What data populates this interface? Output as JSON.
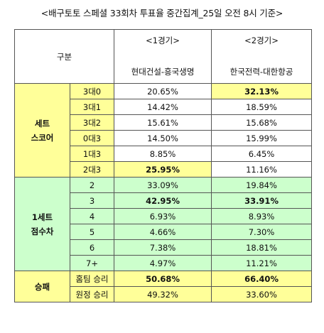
{
  "title": "<배구토토 스페셜 33회차 투표율 중간집계_25일 오전 8시 기준>",
  "header": {
    "label": "구분",
    "games": [
      {
        "game": "<1경기>",
        "teams": "현대건설-흥국생명"
      },
      {
        "game": "<2경기>",
        "teams": "한국전력-대한항공"
      }
    ]
  },
  "sections": [
    {
      "category": [
        "세트",
        "스코어"
      ],
      "rows": [
        {
          "label": "3대0",
          "v1": "20.65%",
          "v2": "32.13%"
        },
        {
          "label": "3대1",
          "v1": "14.42%",
          "v2": "18.59%"
        },
        {
          "label": "3대2",
          "v1": "15.61%",
          "v2": "15.68%"
        },
        {
          "label": "0대3",
          "v1": "14.50%",
          "v2": "15.99%"
        },
        {
          "label": "1대3",
          "v1": "8.85%",
          "v2": "6.45%"
        },
        {
          "label": "2대3",
          "v1": "25.95%",
          "v2": "11.16%"
        }
      ]
    },
    {
      "category": [
        "1세트",
        "점수차"
      ],
      "rows": [
        {
          "label": "2",
          "v1": "33.09%",
          "v2": "19.84%"
        },
        {
          "label": "3",
          "v1": "42.95%",
          "v2": "33.91%"
        },
        {
          "label": "4",
          "v1": "6.93%",
          "v2": "8.93%"
        },
        {
          "label": "5",
          "v1": "4.66%",
          "v2": "7.30%"
        },
        {
          "label": "6",
          "v1": "7.38%",
          "v2": "18.81%"
        },
        {
          "label": "7+",
          "v1": "4.97%",
          "v2": "11.21%"
        }
      ]
    },
    {
      "category": [
        "승패"
      ],
      "rows": [
        {
          "label": "홈팀 승리",
          "v1": "50.68%",
          "v2": "66.40%"
        },
        {
          "label": "원정 승리",
          "v1": "49.32%",
          "v2": "33.60%"
        }
      ]
    }
  ],
  "colors": {
    "set_score": "#ffff99",
    "first_set_margin": "#ccffcc",
    "win_loss": "#ffff99",
    "highlight_row": "#ffff99"
  }
}
